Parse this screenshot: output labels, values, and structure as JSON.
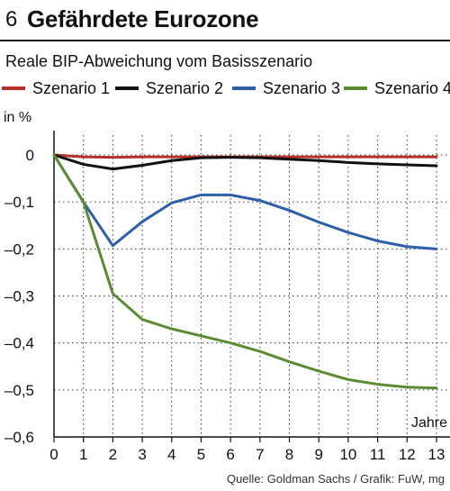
{
  "header": {
    "number": "6",
    "title": "Gefährdete Eurozone"
  },
  "subtitle": "Reale BIP-Abweichung vom Basisszenario",
  "source": "Quelle: Goldman Sachs / Grafik: FuW, mg",
  "chart_data": {
    "type": "line",
    "ylabel": "in %",
    "xlabel": "Jahre",
    "xlim": [
      0,
      13
    ],
    "ylim": [
      -0.6,
      0
    ],
    "x_ticks": [
      0,
      1,
      2,
      3,
      4,
      5,
      6,
      7,
      8,
      9,
      10,
      11,
      12,
      13
    ],
    "x_tick_labels": [
      "0",
      "1",
      "2",
      "3",
      "4",
      "5",
      "6",
      "7",
      "8",
      "9",
      "10",
      "11",
      "12",
      "13"
    ],
    "y_ticks": [
      0,
      -0.1,
      -0.2,
      -0.3,
      -0.4,
      -0.5,
      -0.6
    ],
    "y_tick_labels": [
      "0",
      "–0,1",
      "–0,2",
      "–0,3",
      "–0,4",
      "–0,5",
      "–0,6"
    ],
    "grid": "dotted",
    "legend_position": "top",
    "x": [
      0,
      1,
      2,
      3,
      4,
      5,
      6,
      7,
      8,
      9,
      10,
      11,
      12,
      13
    ],
    "series": [
      {
        "name": "Szenario 1",
        "color": "#b5302a",
        "values": [
          0,
          -0.004,
          -0.005,
          -0.004,
          -0.004,
          -0.004,
          -0.004,
          -0.004,
          -0.004,
          -0.004,
          -0.004,
          -0.004,
          -0.004,
          -0.004
        ]
      },
      {
        "name": "Szenario 2",
        "color": "#111111",
        "values": [
          0,
          -0.02,
          -0.03,
          -0.022,
          -0.012,
          -0.006,
          -0.005,
          -0.006,
          -0.009,
          -0.012,
          -0.016,
          -0.019,
          -0.021,
          -0.023
        ]
      },
      {
        "name": "Szenario 3",
        "color": "#2e5fa8",
        "values": [
          0,
          -0.1,
          -0.193,
          -0.142,
          -0.102,
          -0.085,
          -0.085,
          -0.097,
          -0.118,
          -0.143,
          -0.165,
          -0.183,
          -0.195,
          -0.2
        ]
      },
      {
        "name": "Szenario 4",
        "color": "#5c8b32",
        "values": [
          0,
          -0.1,
          -0.295,
          -0.35,
          -0.37,
          -0.385,
          -0.4,
          -0.418,
          -0.44,
          -0.46,
          -0.478,
          -0.488,
          -0.494,
          -0.496
        ]
      }
    ]
  }
}
